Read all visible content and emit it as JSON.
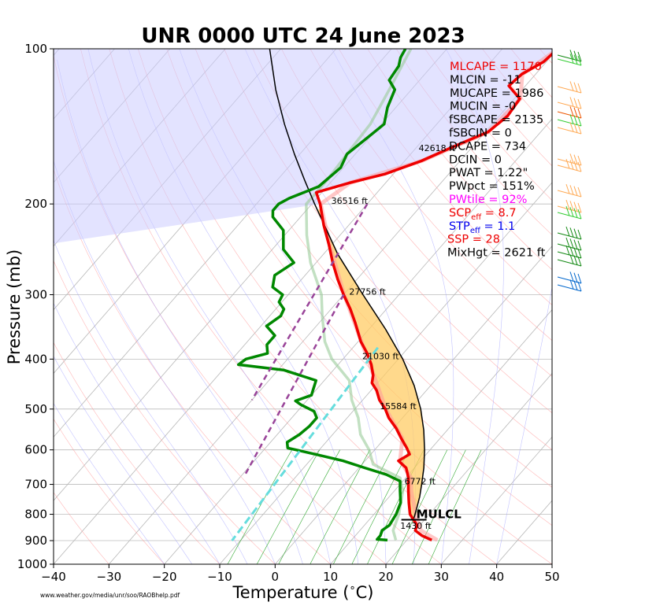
{
  "chart_data": {
    "type": "skew-t",
    "title": "UNR 0000 UTC 24 June 2023",
    "xlabel": "Temperature ($^\\circ$C)",
    "ylabel": "Pressure (mb)",
    "xlim": [
      -40,
      50
    ],
    "ylim": [
      1000,
      100
    ],
    "x_ticks": [
      -40,
      -30,
      -20,
      -10,
      0,
      10,
      20,
      30,
      40,
      50
    ],
    "x_tick_labels": [
      "−40",
      "−30",
      "−20",
      "−10",
      "0",
      "10",
      "20",
      "30",
      "40",
      "50"
    ],
    "y_ticks": [
      100,
      200,
      300,
      400,
      500,
      600,
      700,
      800,
      900,
      1000
    ],
    "y_tick_labels": [
      "100",
      "200",
      "300",
      "400",
      "500",
      "600",
      "700",
      "800",
      "900",
      "1000"
    ],
    "temperature_profile": [
      {
        "p": 898,
        "t": 24.5
      },
      {
        "p": 880,
        "t": 22.0
      },
      {
        "p": 860,
        "t": 20.0
      },
      {
        "p": 840,
        "t": 19.5
      },
      {
        "p": 820,
        "t": 18.0
      },
      {
        "p": 800,
        "t": 16.5
      },
      {
        "p": 760,
        "t": 14.5
      },
      {
        "p": 720,
        "t": 12.5
      },
      {
        "p": 700,
        "t": 11.5
      },
      {
        "p": 680,
        "t": 10.5
      },
      {
        "p": 650,
        "t": 8.5
      },
      {
        "p": 630,
        "t": 6.0
      },
      {
        "p": 612,
        "t": 7.0
      },
      {
        "p": 595,
        "t": 5.5
      },
      {
        "p": 570,
        "t": 3.0
      },
      {
        "p": 545,
        "t": 0.5
      },
      {
        "p": 520,
        "t": -2.5
      },
      {
        "p": 500,
        "t": -4.5
      },
      {
        "p": 480,
        "t": -7.0
      },
      {
        "p": 460,
        "t": -9.0
      },
      {
        "p": 445,
        "t": -11.0
      },
      {
        "p": 430,
        "t": -12.0
      },
      {
        "p": 410,
        "t": -14.0
      },
      {
        "p": 390,
        "t": -16.5
      },
      {
        "p": 370,
        "t": -19.5
      },
      {
        "p": 340,
        "t": -23.5
      },
      {
        "p": 320,
        "t": -26.5
      },
      {
        "p": 300,
        "t": -30.0
      },
      {
        "p": 280,
        "t": -33.5
      },
      {
        "p": 260,
        "t": -37.0
      },
      {
        "p": 240,
        "t": -40.5
      },
      {
        "p": 220,
        "t": -44.5
      },
      {
        "p": 200,
        "t": -48.5
      },
      {
        "p": 190,
        "t": -51.0
      },
      {
        "p": 182,
        "t": -46.5
      },
      {
        "p": 175,
        "t": -41.5
      },
      {
        "p": 165,
        "t": -37.0
      },
      {
        "p": 155,
        "t": -33.5
      },
      {
        "p": 145,
        "t": -29.5
      },
      {
        "p": 135,
        "t": -28.5
      },
      {
        "p": 125,
        "t": -29.0
      },
      {
        "p": 118,
        "t": -33.0
      },
      {
        "p": 112,
        "t": -32.5
      },
      {
        "p": 106,
        "t": -30.5
      },
      {
        "p": 100,
        "t": -30.0
      }
    ],
    "dewpoint_profile": [
      {
        "p": 898,
        "t": 16.5
      },
      {
        "p": 895,
        "t": 14.5
      },
      {
        "p": 880,
        "t": 14.5
      },
      {
        "p": 860,
        "t": 14.0
      },
      {
        "p": 840,
        "t": 14.5
      },
      {
        "p": 800,
        "t": 14.0
      },
      {
        "p": 760,
        "t": 13.0
      },
      {
        "p": 720,
        "t": 11.0
      },
      {
        "p": 690,
        "t": 9.5
      },
      {
        "p": 670,
        "t": 6.0
      },
      {
        "p": 650,
        "t": 1.0
      },
      {
        "p": 630,
        "t": -4.0
      },
      {
        "p": 612,
        "t": -10.0
      },
      {
        "p": 595,
        "t": -16.0
      },
      {
        "p": 580,
        "t": -17.0
      },
      {
        "p": 560,
        "t": -16.0
      },
      {
        "p": 540,
        "t": -15.5
      },
      {
        "p": 520,
        "t": -15.5
      },
      {
        "p": 505,
        "t": -17.0
      },
      {
        "p": 490,
        "t": -20.5
      },
      {
        "p": 482,
        "t": -22.0
      },
      {
        "p": 470,
        "t": -20.0
      },
      {
        "p": 460,
        "t": -20.5
      },
      {
        "p": 440,
        "t": -21.5
      },
      {
        "p": 420,
        "t": -29.0
      },
      {
        "p": 410,
        "t": -38.0
      },
      {
        "p": 400,
        "t": -37.5
      },
      {
        "p": 390,
        "t": -34.5
      },
      {
        "p": 375,
        "t": -36.0
      },
      {
        "p": 360,
        "t": -36.0
      },
      {
        "p": 345,
        "t": -39.0
      },
      {
        "p": 330,
        "t": -38.0
      },
      {
        "p": 320,
        "t": -38.5
      },
      {
        "p": 310,
        "t": -40.5
      },
      {
        "p": 300,
        "t": -41.0
      },
      {
        "p": 290,
        "t": -44.0
      },
      {
        "p": 275,
        "t": -45.5
      },
      {
        "p": 260,
        "t": -44.0
      },
      {
        "p": 245,
        "t": -48.0
      },
      {
        "p": 225,
        "t": -51.0
      },
      {
        "p": 212,
        "t": -55.0
      },
      {
        "p": 206,
        "t": -56.0
      },
      {
        "p": 200,
        "t": -56.0
      },
      {
        "p": 195,
        "t": -55.0
      },
      {
        "p": 185,
        "t": -51.5
      },
      {
        "p": 170,
        "t": -50.5
      },
      {
        "p": 160,
        "t": -51.5
      },
      {
        "p": 150,
        "t": -50.5
      },
      {
        "p": 140,
        "t": -49.5
      },
      {
        "p": 130,
        "t": -51.5
      },
      {
        "p": 120,
        "t": -53.0
      },
      {
        "p": 115,
        "t": -55.5
      },
      {
        "p": 108,
        "t": -56.0
      },
      {
        "p": 104,
        "t": -57.0
      },
      {
        "p": 100,
        "t": -57.5
      }
    ],
    "virtual_temperature_profile": [
      {
        "p": 898,
        "t": 25.5
      },
      {
        "p": 860,
        "t": 21.0
      },
      {
        "p": 800,
        "t": 17.5
      },
      {
        "p": 720,
        "t": 13.0
      },
      {
        "p": 680,
        "t": 11.0
      },
      {
        "p": 630,
        "t": 6.3
      },
      {
        "p": 570,
        "t": 3.2
      },
      {
        "p": 500,
        "t": -4.4
      },
      {
        "p": 430,
        "t": -11.9
      },
      {
        "p": 370,
        "t": -19.4
      },
      {
        "p": 300,
        "t": -29.9
      },
      {
        "p": 240,
        "t": -40.4
      },
      {
        "p": 200,
        "t": -48.4
      },
      {
        "p": 182,
        "t": -46.4
      },
      {
        "p": 165,
        "t": -36.9
      },
      {
        "p": 145,
        "t": -29.4
      },
      {
        "p": 125,
        "t": -28.9
      },
      {
        "p": 112,
        "t": -32.4
      },
      {
        "p": 100,
        "t": -29.9
      }
    ],
    "wet_bulb_profile": [
      {
        "p": 898,
        "t": 18.0
      },
      {
        "p": 860,
        "t": 16.0
      },
      {
        "p": 800,
        "t": 14.5
      },
      {
        "p": 720,
        "t": 11.5
      },
      {
        "p": 680,
        "t": 9.0
      },
      {
        "p": 640,
        "t": 2.0
      },
      {
        "p": 600,
        "t": -1.0
      },
      {
        "p": 560,
        "t": -5.0
      },
      {
        "p": 520,
        "t": -8.0
      },
      {
        "p": 480,
        "t": -12.0
      },
      {
        "p": 440,
        "t": -15.5
      },
      {
        "p": 400,
        "t": -22.0
      },
      {
        "p": 370,
        "t": -26.0
      },
      {
        "p": 330,
        "t": -30.5
      },
      {
        "p": 300,
        "t": -34.0
      },
      {
        "p": 260,
        "t": -41.0
      },
      {
        "p": 230,
        "t": -46.0
      },
      {
        "p": 200,
        "t": -51.0
      },
      {
        "p": 180,
        "t": -51.0
      },
      {
        "p": 160,
        "t": -51.5
      },
      {
        "p": 140,
        "t": -52.0
      },
      {
        "p": 120,
        "t": -54.0
      },
      {
        "p": 100,
        "t": -56.5
      }
    ],
    "parcel_profile": [
      {
        "p": 820,
        "t": 18.0
      },
      {
        "p": 780,
        "t": 16.8
      },
      {
        "p": 740,
        "t": 15.5
      },
      {
        "p": 700,
        "t": 13.9
      },
      {
        "p": 650,
        "t": 11.7
      },
      {
        "p": 600,
        "t": 9.0
      },
      {
        "p": 550,
        "t": 5.8
      },
      {
        "p": 500,
        "t": 1.9
      },
      {
        "p": 450,
        "t": -3.0
      },
      {
        "p": 400,
        "t": -9.2
      },
      {
        "p": 350,
        "t": -17.0
      },
      {
        "p": 300,
        "t": -26.5
      },
      {
        "p": 250,
        "t": -37.5
      },
      {
        "p": 200,
        "t": -49.5
      },
      {
        "p": 180,
        "t": -55.0
      },
      {
        "p": 160,
        "t": -61.0
      },
      {
        "p": 140,
        "t": -67.5
      },
      {
        "p": 120,
        "t": -74.5
      },
      {
        "p": 100,
        "t": -82.0
      }
    ],
    "dgz_lines": [
      {
        "name": "",
        "points": [
          {
            "p": 200,
            "t": -40.0
          },
          {
            "p": 480,
            "t": -30.0
          }
        ]
      },
      {
        "name": "",
        "points": [
          {
            "p": 300,
            "t": -30.0
          },
          {
            "p": 670,
            "t": -19.5
          }
        ]
      }
    ],
    "wetbulb_zero_line": {
      "points": [
        {
          "p": 380,
          "t": -15.5
        },
        {
          "p": 900,
          "t": -11.5
        }
      ]
    },
    "mulcl": {
      "p": 820,
      "label": "MULCL"
    },
    "height_labels": [
      {
        "p": 158,
        "t": -39.0,
        "text": "42618 ft"
      },
      {
        "p": 200,
        "t": -46.5,
        "text": "36516 ft"
      },
      {
        "p": 300,
        "t": -29.0,
        "text": "27756 ft"
      },
      {
        "p": 400,
        "t": -16.5,
        "text": "21030 ft"
      },
      {
        "p": 500,
        "t": -5.5,
        "text": "15584 ft"
      },
      {
        "p": 700,
        "t": 10.8,
        "text": "6772 ft"
      },
      {
        "p": 853,
        "t": 17.0,
        "text": "1430 ft"
      }
    ],
    "parameters": [
      {
        "text": "MLCAPE = 1170",
        "color": "#ee0000"
      },
      {
        "text": "MLCIN = -11",
        "color": "#000000"
      },
      {
        "text": "MUCAPE = 1986",
        "color": "#000000"
      },
      {
        "text": "MUCIN = -0",
        "color": "#000000"
      },
      {
        "text": "fSBCAPE = 2135",
        "color": "#000000"
      },
      {
        "text": "fSBCIN = 0",
        "color": "#000000"
      },
      {
        "text": "DCAPE = 734",
        "color": "#000000"
      },
      {
        "text": "DCIN = 0",
        "color": "#000000"
      },
      {
        "text": "PWAT = 1.22\"",
        "color": "#000000"
      },
      {
        "text": "PWpct = 151%",
        "color": "#000000"
      },
      {
        "text": "PWtile = 92%",
        "color": "#ff00ff"
      },
      {
        "text": "SCP = 8.7",
        "base": "SCP",
        "sub": "eff",
        "value": " = 8.7",
        "color": "#ee0000"
      },
      {
        "text": "STP = 1.1",
        "base": "STP",
        "sub": "eff",
        "value": " = 1.1",
        "color": "#0000ee"
      },
      {
        "text": "SSP = 28",
        "color": "#ee0000"
      },
      {
        "text": "MixHgt = 2621 ft",
        "color": "#000000"
      }
    ],
    "credit": "www.weather.gov/media/unr/soo/RAOBhelp.pdf",
    "wind_profile_colors": [
      "#118811",
      "#33cc33",
      "#ffaa55",
      "#ee5500",
      "#0066cc"
    ],
    "grid": true
  }
}
